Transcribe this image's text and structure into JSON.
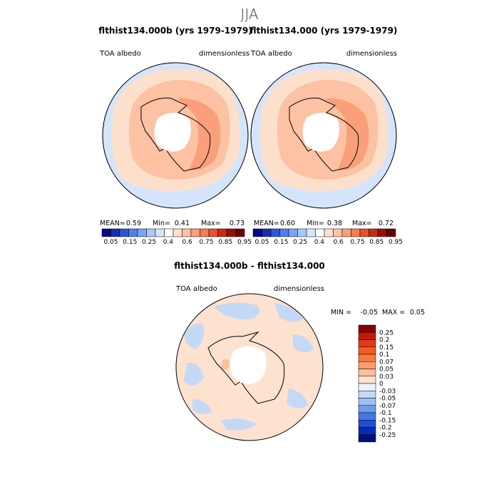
{
  "figure_title": "JJA",
  "colors": {
    "continent": "#ffffff",
    "coast": "#000000",
    "hole": "#ffffff"
  },
  "chart_data": [
    {
      "type": "heatmap",
      "projection": "south-polar-stereographic",
      "title": "flthist134.000b (yrs 1979-1979)",
      "variable": "TOA albedo",
      "units": "dimensionless",
      "stats": {
        "mean_label": "MEAN=",
        "mean": "0.59",
        "min_label": "Min=",
        "min": "0.41",
        "max_label": "Max=",
        "max": "0.73"
      },
      "colorbar": {
        "orientation": "horizontal",
        "levels": [
          "0.05",
          "0.15",
          "0.25",
          "0.4",
          "0.6",
          "0.75",
          "0.85",
          "0.95"
        ],
        "colors": [
          "#08088a",
          "#1a2bb4",
          "#2f55d6",
          "#4f7fee",
          "#7ba4f7",
          "#a9c8f9",
          "#d4e5fb",
          "#ffffff",
          "#fde0cc",
          "#fcc2a3",
          "#f9a07a",
          "#f67c52",
          "#e8502e",
          "#c82a16",
          "#9a0e08",
          "#6a0000"
        ]
      }
    },
    {
      "type": "heatmap",
      "projection": "south-polar-stereographic",
      "title": "flthist134.000 (yrs 1979-1979)",
      "variable": "TOA albedo",
      "units": "dimensionless",
      "stats": {
        "mean_label": "MEAN=",
        "mean": "0.60",
        "min_label": "Min=",
        "min": "0.38",
        "max_label": "Max=",
        "max": "0.72"
      },
      "colorbar": {
        "orientation": "horizontal",
        "levels": [
          "0.05",
          "0.15",
          "0.25",
          "0.4",
          "0.6",
          "0.75",
          "0.85",
          "0.95"
        ],
        "colors": [
          "#08088a",
          "#1a2bb4",
          "#2f55d6",
          "#4f7fee",
          "#7ba4f7",
          "#a9c8f9",
          "#d4e5fb",
          "#ffffff",
          "#fde0cc",
          "#fcc2a3",
          "#f9a07a",
          "#f67c52",
          "#e8502e",
          "#c82a16",
          "#9a0e08",
          "#6a0000"
        ]
      }
    },
    {
      "type": "heatmap",
      "projection": "south-polar-stereographic",
      "title": "flthist134.000b - flthist134.000",
      "variable": "TOA albedo",
      "units": "dimensionless",
      "stats": {
        "min_label": "MIN =",
        "min": "-0.05",
        "max_label": "MAX =",
        "max": "0.05"
      },
      "colorbar": {
        "orientation": "vertical",
        "levels": [
          "0.25",
          "0.2",
          "0.15",
          "0.1",
          "0.07",
          "0.05",
          "0.03",
          "0",
          "-0.03",
          "-0.05",
          "-0.07",
          "-0.1",
          "-0.15",
          "-0.2",
          "-0.25"
        ],
        "colors": [
          "#8b0000",
          "#c21a0a",
          "#e03a16",
          "#f55b22",
          "#fb7a3e",
          "#fc9d6c",
          "#fdbf9d",
          "#fde2d0",
          "#ecf2fb",
          "#c4d9f6",
          "#9ebff2",
          "#6f9cee",
          "#4777e6",
          "#1f4fd6",
          "#0a2cb0",
          "#00127a"
        ]
      }
    }
  ]
}
